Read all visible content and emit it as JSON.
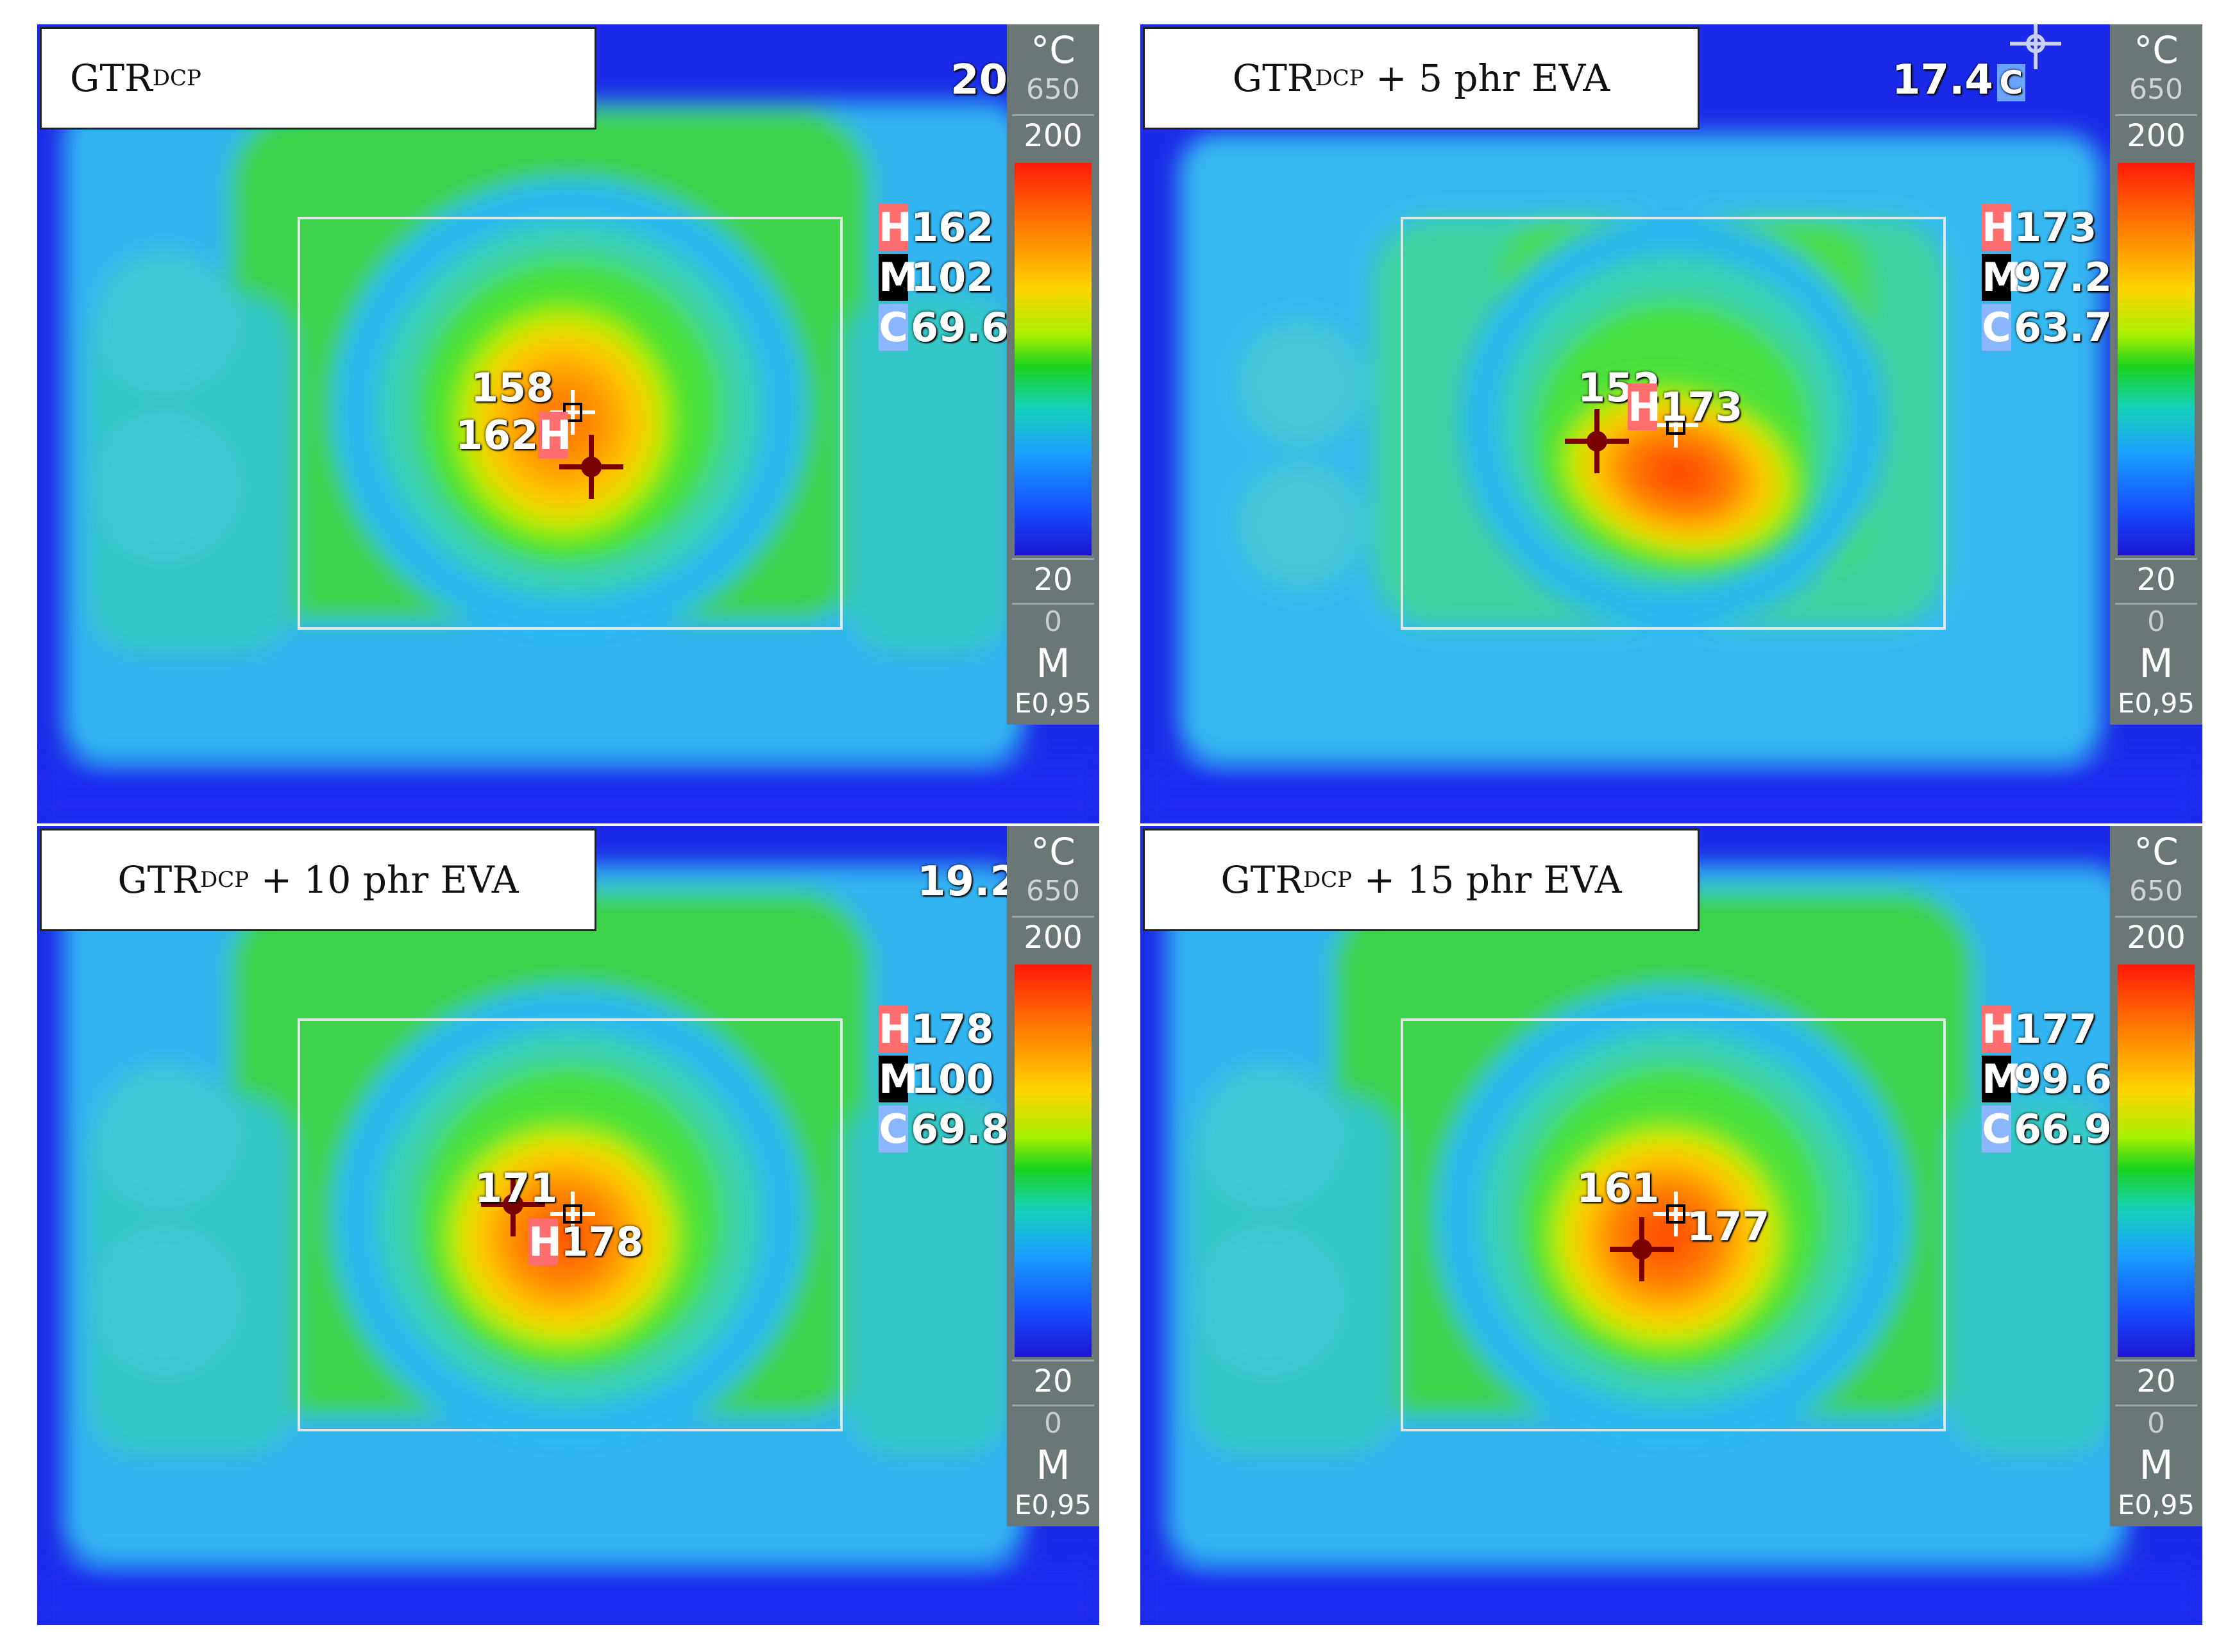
{
  "scale": {
    "unit": "°C",
    "t650": "650",
    "t200": "200",
    "t20": "20",
    "t0": "0",
    "mode": "M",
    "emissivity": "E0,95"
  },
  "panels": [
    {
      "title_main": "GTR",
      "title_sub": "DCP",
      "title_rest": "",
      "corner_temp": "20",
      "corner_icon": "",
      "h_tag": "H",
      "h_value": "162",
      "m_tag": "M",
      "m_value": "102",
      "c_tag": "C",
      "c_value": "69.6",
      "spot_a": "158",
      "spot_b": "162",
      "spot_b_tag": "H"
    },
    {
      "title_main": "GTR",
      "title_sub": "DCP",
      "title_rest": " + 5 phr EVA",
      "corner_temp": "17.4",
      "corner_icon": "C",
      "h_tag": "H",
      "h_value": "173",
      "m_tag": "M",
      "m_value": "97.2",
      "c_tag": "C",
      "c_value": "63.7",
      "spot_a": "152",
      "spot_b": "173",
      "spot_b_tag": "H"
    },
    {
      "title_main": "GTR",
      "title_sub": "DCP",
      "title_rest": " + 10 phr EVA",
      "corner_temp": "19.2",
      "corner_icon": "",
      "h_tag": "H",
      "h_value": "178",
      "m_tag": "M",
      "m_value": "100",
      "c_tag": "C",
      "c_value": "69.8",
      "spot_a": "171",
      "spot_b": "178",
      "spot_b_tag": "H"
    },
    {
      "title_main": "GTR",
      "title_sub": "DCP",
      "title_rest": " + 15 phr EVA",
      "corner_temp": "",
      "corner_icon": "",
      "h_tag": "H",
      "h_value": "177",
      "m_tag": "M",
      "m_value": "99.6",
      "c_tag": "C",
      "c_value": "66.9",
      "spot_a": "161",
      "spot_b": "177",
      "spot_b_tag": ""
    }
  ]
}
